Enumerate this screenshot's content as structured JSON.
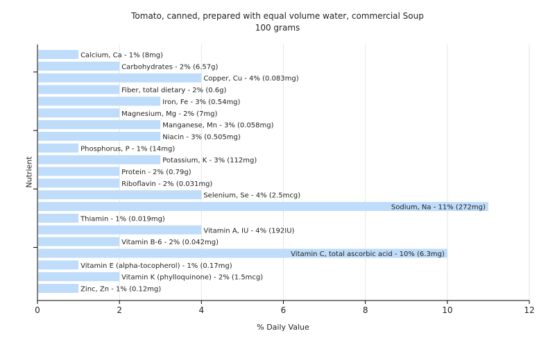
{
  "chart_data": {
    "type": "bar",
    "orientation": "horizontal",
    "title": "Tomato, canned, prepared with equal volume water, commercial Soup",
    "subtitle": "100 grams",
    "xlabel": "% Daily Value",
    "ylabel": "Nutrient",
    "xlim": [
      0,
      12
    ],
    "x_ticks": [
      0,
      2,
      4,
      6,
      8,
      10,
      12
    ],
    "grid": "vertical",
    "bar_color": "#bfdcfb",
    "categories": [
      "Calcium, Ca",
      "Carbohydrates",
      "Copper, Cu",
      "Fiber, total dietary",
      "Iron, Fe",
      "Magnesium, Mg",
      "Manganese, Mn",
      "Niacin",
      "Phosphorus, P",
      "Potassium, K",
      "Protein",
      "Riboflavin",
      "Selenium, Se",
      "Sodium, Na",
      "Thiamin",
      "Vitamin A, IU",
      "Vitamin B-6",
      "Vitamin C, total ascorbic acid",
      "Vitamin E (alpha-tocopherol)",
      "Vitamin K (phylloquinone)",
      "Zinc, Zn"
    ],
    "values": [
      1,
      2,
      4,
      2,
      3,
      2,
      3,
      3,
      1,
      3,
      2,
      2,
      4,
      11,
      1,
      4,
      2,
      10,
      1,
      2,
      1
    ],
    "labels": [
      "Calcium, Ca - 1% (8mg)",
      "Carbohydrates - 2% (6.57g)",
      "Copper, Cu - 4% (0.083mg)",
      "Fiber, total dietary - 2% (0.6g)",
      "Iron, Fe - 3% (0.54mg)",
      "Magnesium, Mg - 2% (7mg)",
      "Manganese, Mn - 3% (0.058mg)",
      "Niacin - 3% (0.505mg)",
      "Phosphorus, P - 1% (14mg)",
      "Potassium, K - 3% (112mg)",
      "Protein - 2% (0.79g)",
      "Riboflavin - 2% (0.031mg)",
      "Selenium, Se - 4% (2.5mcg)",
      "Sodium, Na - 11% (272mg)",
      "Thiamin - 1% (0.019mg)",
      "Vitamin A, IU - 4% (192IU)",
      "Vitamin B-6 - 2% (0.042mg)",
      "Vitamin C, total ascorbic acid - 10% (6.3mg)",
      "Vitamin E (alpha-tocopherol) - 1% (0.17mg)",
      "Vitamin K (phylloquinone) - 2% (1.5mcg)",
      "Zinc, Zn - 1% (0.12mg)"
    ]
  }
}
